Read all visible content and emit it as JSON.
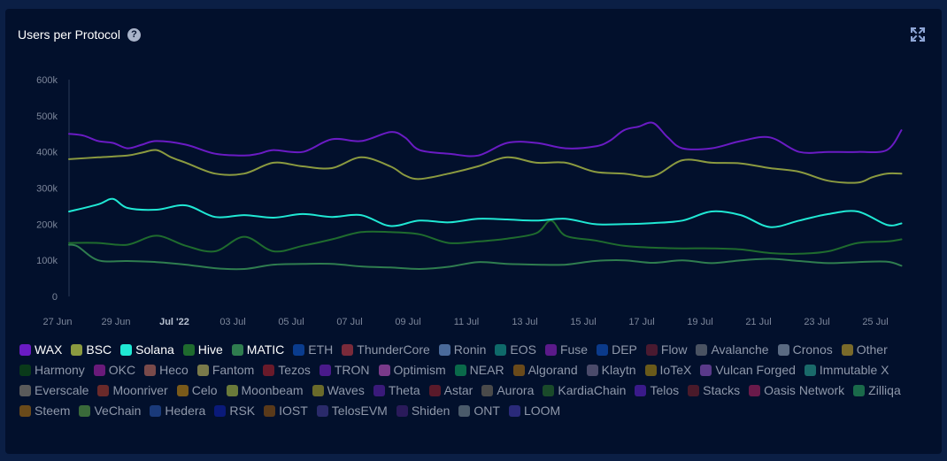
{
  "header": {
    "title": "Users per Protocol",
    "help_glyph": "?"
  },
  "icons": {
    "help": "question-circle-icon",
    "expand": "expand-arrows-icon"
  },
  "chart_data": {
    "type": "line",
    "title": "Users per Protocol",
    "ylim": [
      0,
      600000
    ],
    "yticks": [
      0,
      100000,
      200000,
      300000,
      400000,
      500000,
      600000
    ],
    "ytick_labels": [
      "0",
      "100k",
      "200k",
      "300k",
      "400k",
      "500k",
      "600k"
    ],
    "xtick_labels": [
      {
        "day": 0,
        "label": "27 Jun",
        "bold": false
      },
      {
        "day": 2,
        "label": "29 Jun",
        "bold": false
      },
      {
        "day": 4,
        "label": "Jul '22",
        "bold": true
      },
      {
        "day": 6,
        "label": "03 Jul",
        "bold": false
      },
      {
        "day": 8,
        "label": "05 Jul",
        "bold": false
      },
      {
        "day": 10,
        "label": "07 Jul",
        "bold": false
      },
      {
        "day": 12,
        "label": "09 Jul",
        "bold": false
      },
      {
        "day": 14,
        "label": "11 Jul",
        "bold": false
      },
      {
        "day": 16,
        "label": "13 Jul",
        "bold": false
      },
      {
        "day": 18,
        "label": "15 Jul",
        "bold": false
      },
      {
        "day": 20,
        "label": "17 Jul",
        "bold": false
      },
      {
        "day": 22,
        "label": "19 Jul",
        "bold": false
      },
      {
        "day": 24,
        "label": "21 Jul",
        "bold": false
      },
      {
        "day": 26,
        "label": "23 Jul",
        "bold": false
      },
      {
        "day": 28,
        "label": "25 Jul",
        "bold": false
      }
    ],
    "grid": false,
    "legend_position": "bottom",
    "series": [
      {
        "name": "WAX",
        "color": "#6a1bc4",
        "visible": true,
        "x": [
          0,
          0.5,
          1,
          1.5,
          2,
          2.5,
          3,
          4,
          5,
          6,
          6.5,
          7,
          8,
          9,
          10,
          11,
          11.5,
          12,
          13,
          14,
          15,
          16,
          17,
          18,
          18.5,
          19,
          19.5,
          20,
          20.5,
          21,
          22,
          23,
          24,
          25,
          26,
          27,
          28,
          28.5
        ],
        "values": [
          450000,
          445000,
          430000,
          425000,
          410000,
          420000,
          430000,
          420000,
          395000,
          390000,
          395000,
          405000,
          400000,
          435000,
          430000,
          455000,
          440000,
          405000,
          395000,
          390000,
          425000,
          425000,
          410000,
          415000,
          430000,
          460000,
          470000,
          480000,
          440000,
          410000,
          410000,
          430000,
          440000,
          400000,
          400000,
          400000,
          405000,
          460000
        ]
      },
      {
        "name": "BSC",
        "color": "#8b9a40",
        "visible": true,
        "x": [
          0,
          1,
          2,
          2.5,
          3,
          3.5,
          4,
          5,
          6,
          7,
          8,
          9,
          10,
          11,
          11.5,
          12,
          13,
          14,
          15,
          16,
          17,
          18,
          19,
          20,
          21,
          22,
          23,
          24,
          25,
          26,
          27,
          27.5,
          28,
          28.5
        ],
        "values": [
          380000,
          385000,
          390000,
          398000,
          405000,
          385000,
          370000,
          340000,
          340000,
          370000,
          360000,
          355000,
          385000,
          360000,
          335000,
          325000,
          340000,
          360000,
          385000,
          370000,
          370000,
          345000,
          340000,
          333000,
          377000,
          370000,
          368000,
          355000,
          345000,
          320000,
          315000,
          330000,
          340000,
          340000
        ]
      },
      {
        "name": "Solana",
        "color": "#20e8d4",
        "visible": true,
        "x": [
          0,
          1,
          1.5,
          2,
          3,
          4,
          5,
          6,
          7,
          8,
          9,
          10,
          11,
          12,
          13,
          14,
          15,
          16,
          17,
          18,
          19,
          20,
          21,
          22,
          23,
          24,
          25,
          26,
          27,
          28,
          28.5
        ],
        "values": [
          235000,
          255000,
          270000,
          245000,
          240000,
          252000,
          220000,
          225000,
          218000,
          228000,
          220000,
          225000,
          195000,
          210000,
          205000,
          215000,
          213000,
          210000,
          215000,
          200000,
          200000,
          203000,
          210000,
          235000,
          225000,
          192000,
          210000,
          228000,
          235000,
          198000,
          202000
        ]
      },
      {
        "name": "Hive",
        "color": "#1f6b2e",
        "visible": true,
        "x": [
          0,
          1,
          2,
          3,
          4,
          5,
          6,
          7,
          8,
          9,
          10,
          11,
          12,
          13,
          14,
          15,
          16,
          16.5,
          17,
          18,
          19,
          20,
          21,
          22,
          23,
          24,
          25,
          26,
          27,
          28,
          28.5
        ],
        "values": [
          148000,
          148000,
          143000,
          168000,
          140000,
          125000,
          165000,
          125000,
          140000,
          158000,
          178000,
          178000,
          172000,
          148000,
          152000,
          160000,
          175000,
          210000,
          168000,
          155000,
          140000,
          135000,
          133000,
          133000,
          130000,
          120000,
          118000,
          125000,
          148000,
          152000,
          158000
        ]
      },
      {
        "name": "MATIC",
        "color": "#2f7d4f",
        "visible": true,
        "x": [
          0,
          0.3,
          1,
          2,
          3,
          4,
          5,
          6,
          7,
          8,
          9,
          10,
          11,
          12,
          13,
          14,
          15,
          16,
          17,
          18,
          19,
          20,
          21,
          22,
          23,
          24,
          25,
          26,
          27,
          28,
          28.5
        ],
        "values": [
          143000,
          138000,
          100000,
          98000,
          95000,
          88000,
          78000,
          76000,
          88000,
          90000,
          90000,
          83000,
          80000,
          76000,
          82000,
          95000,
          90000,
          88000,
          88000,
          98000,
          100000,
          93000,
          100000,
          92000,
          100000,
          104000,
          98000,
          92000,
          95000,
          96000,
          85000
        ]
      },
      {
        "name": "ETH",
        "color": "#0a3c8e",
        "visible": false
      },
      {
        "name": "ThunderCore",
        "color": "#7a2a3a",
        "visible": false
      },
      {
        "name": "Ronin",
        "color": "#4a6a9a",
        "visible": false
      },
      {
        "name": "EOS",
        "color": "#0f6a6a",
        "visible": false
      },
      {
        "name": "Fuse",
        "color": "#5b1a8a",
        "visible": false
      },
      {
        "name": "DEP",
        "color": "#0b3a8a",
        "visible": false
      },
      {
        "name": "Flow",
        "color": "#4a1a30",
        "visible": false
      },
      {
        "name": "Avalanche",
        "color": "#4a5362",
        "visible": false
      },
      {
        "name": "Cronos",
        "color": "#5a6a82",
        "visible": false
      },
      {
        "name": "Other",
        "color": "#7a6a2a",
        "visible": false
      },
      {
        "name": "Harmony",
        "color": "#0a3a1a",
        "visible": false
      },
      {
        "name": "OKC",
        "color": "#6a1a7a",
        "visible": false
      },
      {
        "name": "Heco",
        "color": "#7a4a4a",
        "visible": false
      },
      {
        "name": "Fantom",
        "color": "#7a7a4a",
        "visible": false
      },
      {
        "name": "Tezos",
        "color": "#6a1a2a",
        "visible": false
      },
      {
        "name": "TRON",
        "color": "#4a1a8a",
        "visible": false
      },
      {
        "name": "Optimism",
        "color": "#7a3a8a",
        "visible": false
      },
      {
        "name": "NEAR",
        "color": "#0a6a4a",
        "visible": false
      },
      {
        "name": "Algorand",
        "color": "#6a4a1a",
        "visible": false
      },
      {
        "name": "Klaytn",
        "color": "#4a4a6a",
        "visible": false
      },
      {
        "name": "IoTeX",
        "color": "#6a5a1a",
        "visible": false
      },
      {
        "name": "Vulcan Forged",
        "color": "#5a3a8a",
        "visible": false
      },
      {
        "name": "Immutable X",
        "color": "#1a6a6a",
        "visible": false
      },
      {
        "name": "Everscale",
        "color": "#5a5a5a",
        "visible": false
      },
      {
        "name": "Moonriver",
        "color": "#6a2a2a",
        "visible": false
      },
      {
        "name": "Celo",
        "color": "#7a5a1a",
        "visible": false
      },
      {
        "name": "Moonbeam",
        "color": "#6a7a3a",
        "visible": false
      },
      {
        "name": "Waves",
        "color": "#6a6a2a",
        "visible": false
      },
      {
        "name": "Theta",
        "color": "#3a1a7a",
        "visible": false
      },
      {
        "name": "Astar",
        "color": "#5a1a2a",
        "visible": false
      },
      {
        "name": "Aurora",
        "color": "#4a4a4a",
        "visible": false
      },
      {
        "name": "KardiaChain",
        "color": "#1a4a2a",
        "visible": false
      },
      {
        "name": "Telos",
        "color": "#3a1a8a",
        "visible": false
      },
      {
        "name": "Stacks",
        "color": "#4a1a2a",
        "visible": false
      },
      {
        "name": "Oasis Network",
        "color": "#6a1a4a",
        "visible": false
      },
      {
        "name": "Zilliqa",
        "color": "#1a6a4a",
        "visible": false
      },
      {
        "name": "Steem",
        "color": "#6a4a1a",
        "visible": false
      },
      {
        "name": "VeChain",
        "color": "#3a6a3a",
        "visible": false
      },
      {
        "name": "Hedera",
        "color": "#1a3a7a",
        "visible": false
      },
      {
        "name": "RSK",
        "color": "#0a1a7a",
        "visible": false
      },
      {
        "name": "IOST",
        "color": "#5a3a1a",
        "visible": false
      },
      {
        "name": "TelosEVM",
        "color": "#2a2a6a",
        "visible": false
      },
      {
        "name": "Shiden",
        "color": "#2a1a5a",
        "visible": false
      },
      {
        "name": "ONT",
        "color": "#4a5a6a",
        "visible": false
      },
      {
        "name": "LOOM",
        "color": "#2a2a7a",
        "visible": false
      }
    ]
  }
}
